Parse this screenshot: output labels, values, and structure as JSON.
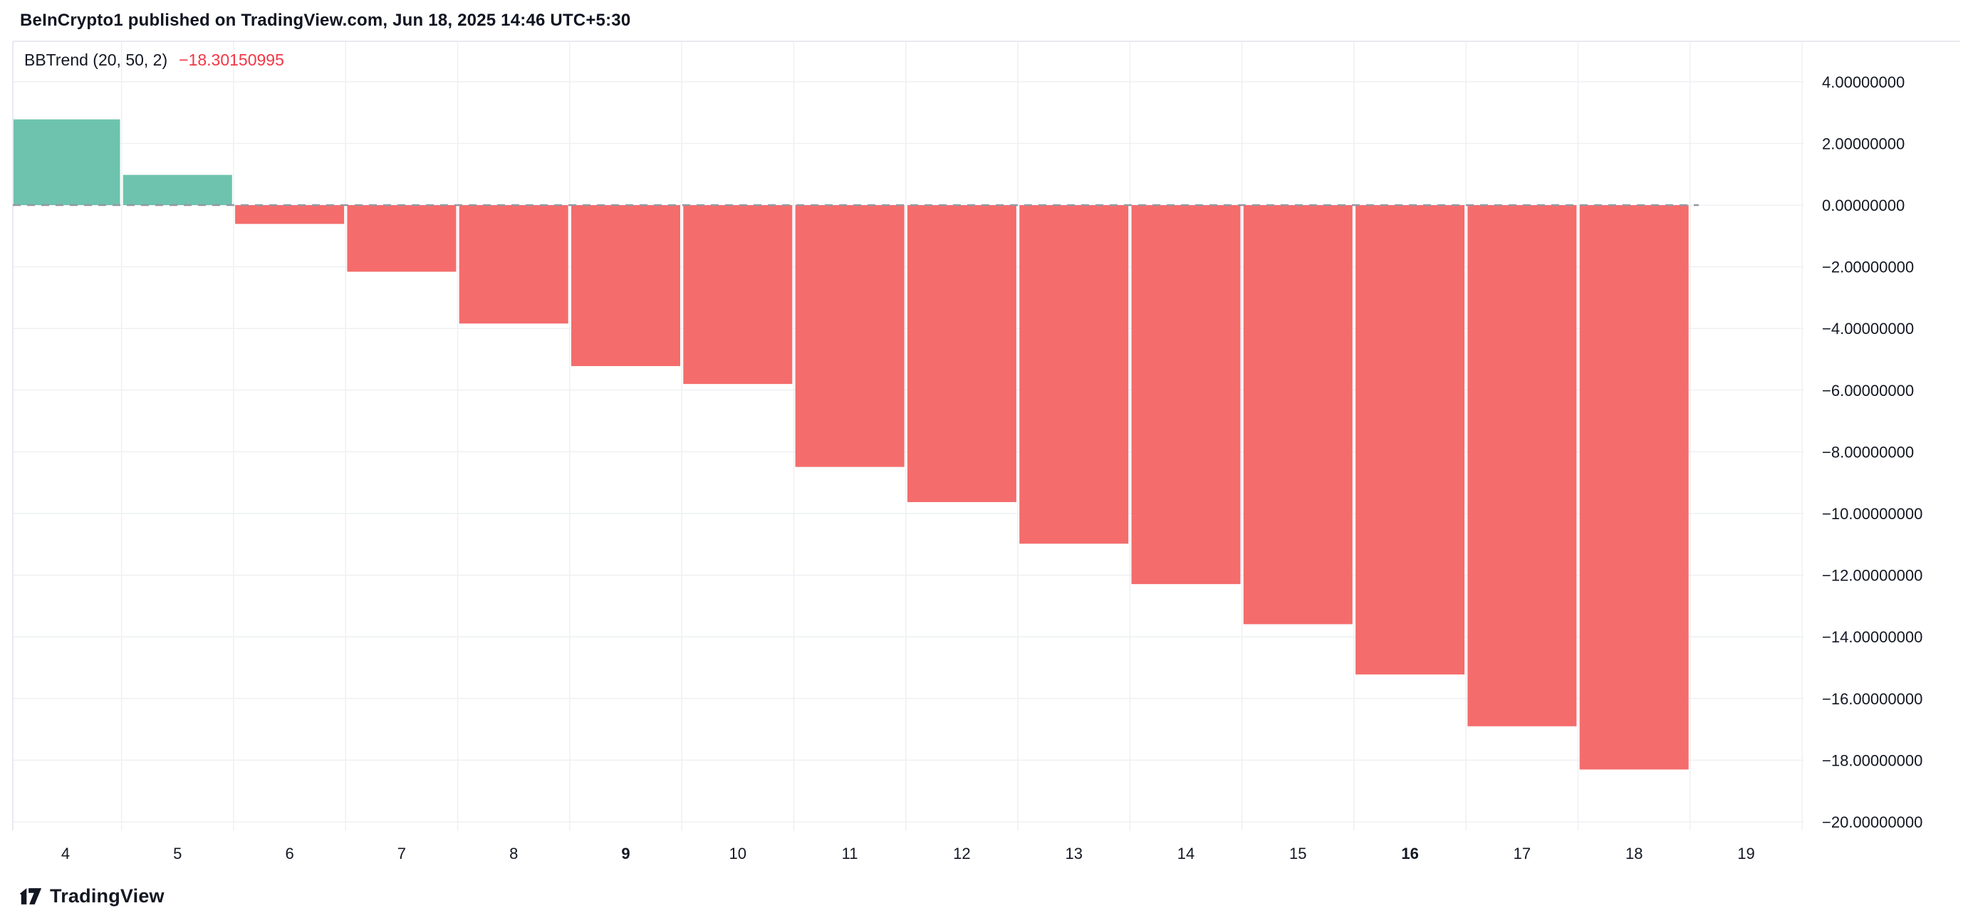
{
  "header": {
    "attribution": "BeInCrypto1 published on TradingView.com, Jun 18, 2025 14:46 UTC+5:30"
  },
  "legend": {
    "indicator": "BBTrend (20, 50, 2)",
    "value": "−18.30150995"
  },
  "footer": {
    "brand": "TradingView"
  },
  "colors": {
    "legend_value": "#f23645",
    "text": "#131722"
  },
  "chart_data": {
    "type": "bar",
    "title": "BBTrend (20, 50, 2)",
    "x": [
      4,
      5,
      6,
      7,
      8,
      9,
      10,
      11,
      12,
      13,
      14,
      15,
      16,
      17,
      18
    ],
    "values": [
      2.78,
      0.98,
      -0.61,
      -2.16,
      -3.84,
      -5.22,
      -5.8,
      -8.49,
      -9.63,
      -10.98,
      -12.29,
      -13.59,
      -15.22,
      -16.9,
      -18.30150995
    ],
    "last_value": -18.30150995,
    "x_ticks": [
      "4",
      "5",
      "6",
      "7",
      "8",
      "9",
      "10",
      "11",
      "12",
      "13",
      "14",
      "15",
      "16",
      "17",
      "18",
      "19"
    ],
    "bold_x_ticks": [
      "9",
      "16"
    ],
    "y_ticks": [
      "4.00000000",
      "2.00000000",
      "0.00000000",
      "−2.00000000",
      "−4.00000000",
      "−6.00000000",
      "−8.00000000",
      "−10.00000000",
      "−12.00000000",
      "−14.00000000",
      "−16.00000000",
      "−18.00000000",
      "−20.00000000"
    ],
    "y_tick_values": [
      4,
      2,
      0,
      -2,
      -4,
      -6,
      -8,
      -10,
      -12,
      -14,
      -16,
      -18,
      -20
    ],
    "ylim": [
      -20.3,
      5.3
    ],
    "grid": true,
    "legend_position": "top-left",
    "up_color": "#6dc3ae",
    "down_color": "#f56c6c",
    "grid_color": "#eef0f3",
    "border_color": "#e0e3eb",
    "text_color": "#131722",
    "zero_line": {
      "style": "dashed",
      "color": "#9598a1"
    }
  }
}
